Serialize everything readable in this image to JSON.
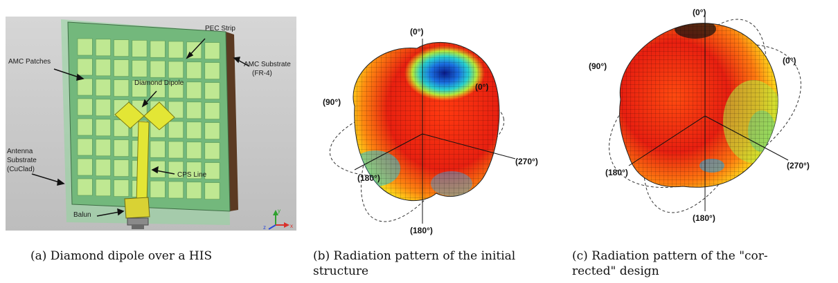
{
  "panel_a": {
    "labels": {
      "pec_strip": "PEC Strip",
      "amc_patches": "AMC Patches",
      "amc_substrate_1": "AMC Substrate",
      "amc_substrate_2": "(FR-4)",
      "diamond_dipole": "Diamond Dipole",
      "antenna_substrate_1": "Antenna",
      "antenna_substrate_2": "Substrate",
      "antenna_substrate_3": "(CuClad)",
      "cps_line": "CPS Line",
      "balun": "Balun",
      "axis_x": "x",
      "axis_y": "y",
      "axis_z": "z"
    },
    "colors": {
      "background": "#c8c8c8",
      "substrate": "#9fd6a6",
      "patch": "#bfe892",
      "dipole": "#e3e635",
      "edge": "#6a4a2a"
    }
  },
  "panel_b": {
    "labels": {
      "top": "(0°)",
      "left": "(90°)",
      "right_upper": "(0°)",
      "right": "(270°)",
      "lower_left": "(180°)",
      "bottom": "(180°)"
    }
  },
  "panel_c": {
    "labels": {
      "top": "(0°)",
      "left": "(90°)",
      "right_upper": "(0°)",
      "right": "(270°)",
      "lower_left": "(180°)",
      "bottom": "(180°)"
    }
  },
  "captions": {
    "a": "(a) Diamond dipole over a HIS",
    "b_line1": "(b) Radiation pattern of the initial",
    "b_line2": "structure",
    "c_line1": "(c) Radiation pattern of the \"cor-",
    "c_line2": "rected\" design"
  }
}
